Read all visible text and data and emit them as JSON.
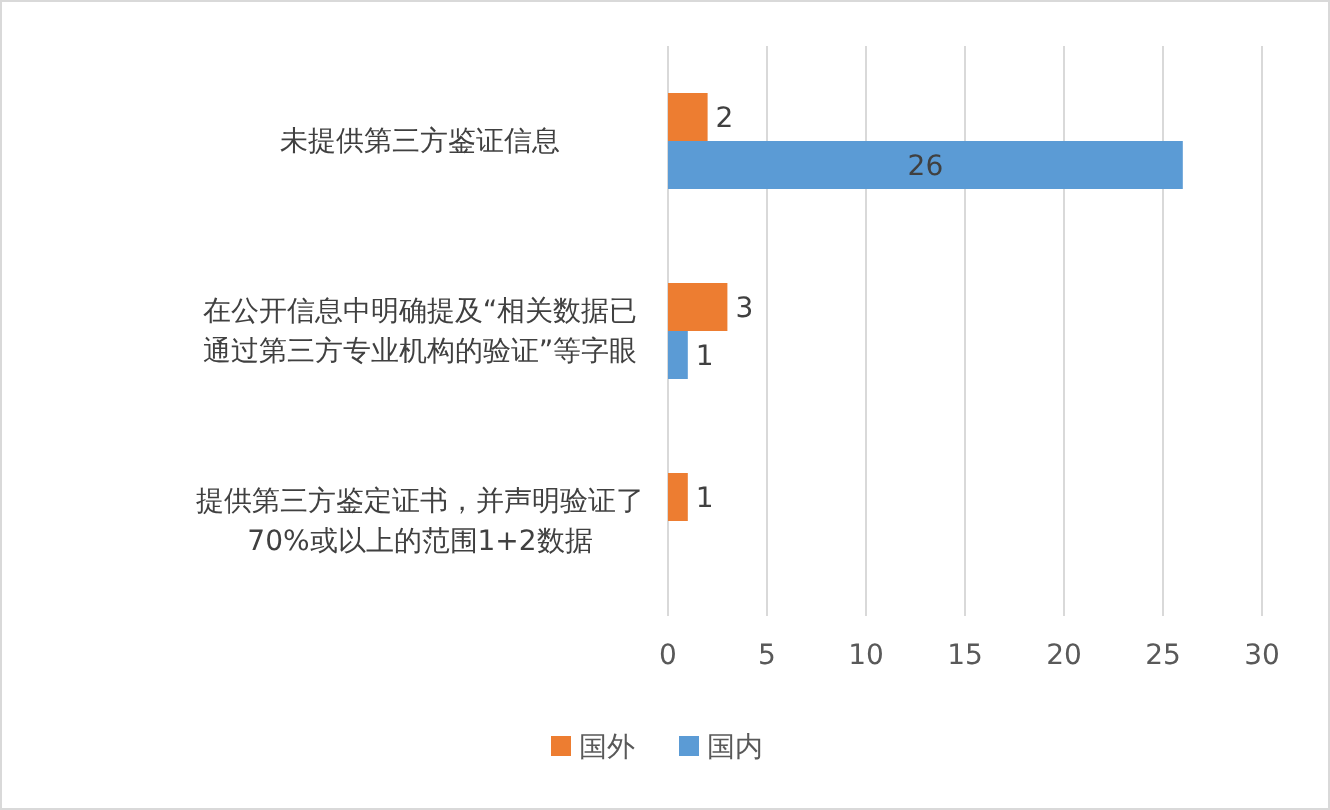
{
  "chart_data": {
    "type": "bar",
    "orientation": "horizontal",
    "categories": [
      "未提供第三方鉴证信息",
      "在公开信息中明确提及“相关数据已通过第三方专业机构的验证”等字眼",
      "提供第三方鉴定证书，并声明验证了70%或以上的范围1+2数据"
    ],
    "series": [
      {
        "name": "国外",
        "color": "#ed7d31",
        "values": [
          2,
          3,
          1
        ]
      },
      {
        "name": "国内",
        "color": "#5b9bd5",
        "values": [
          26,
          1,
          null
        ]
      }
    ],
    "xlim": [
      0,
      30
    ],
    "xticks": [
      0,
      5,
      10,
      15,
      20,
      25,
      30
    ],
    "grid": "x",
    "legend": "bottom",
    "data_labels": true
  }
}
